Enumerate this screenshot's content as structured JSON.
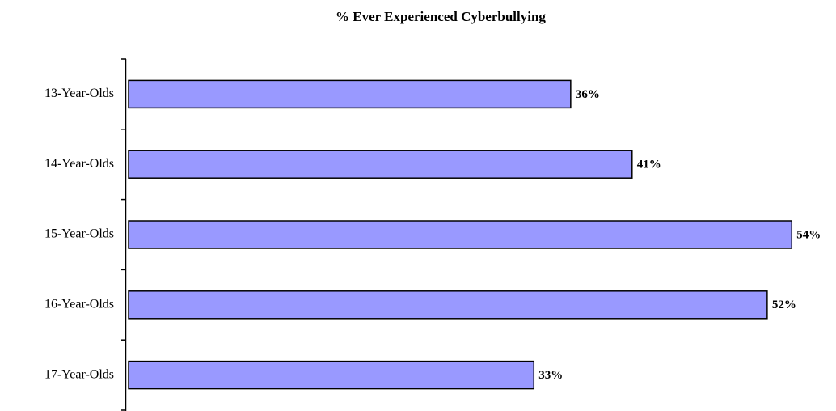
{
  "chart_data": {
    "type": "hbar",
    "title": "% Ever Experienced Cyberbullying",
    "categories": [
      "13-Year-Olds",
      "14-Year-Olds",
      "15-Year-Olds",
      "16-Year-Olds",
      "17-Year-Olds"
    ],
    "values": [
      36,
      41,
      54,
      52,
      33
    ],
    "value_labels": [
      "36%",
      "41%",
      "54%",
      "52%",
      "33%"
    ],
    "color": "#9999ff"
  }
}
